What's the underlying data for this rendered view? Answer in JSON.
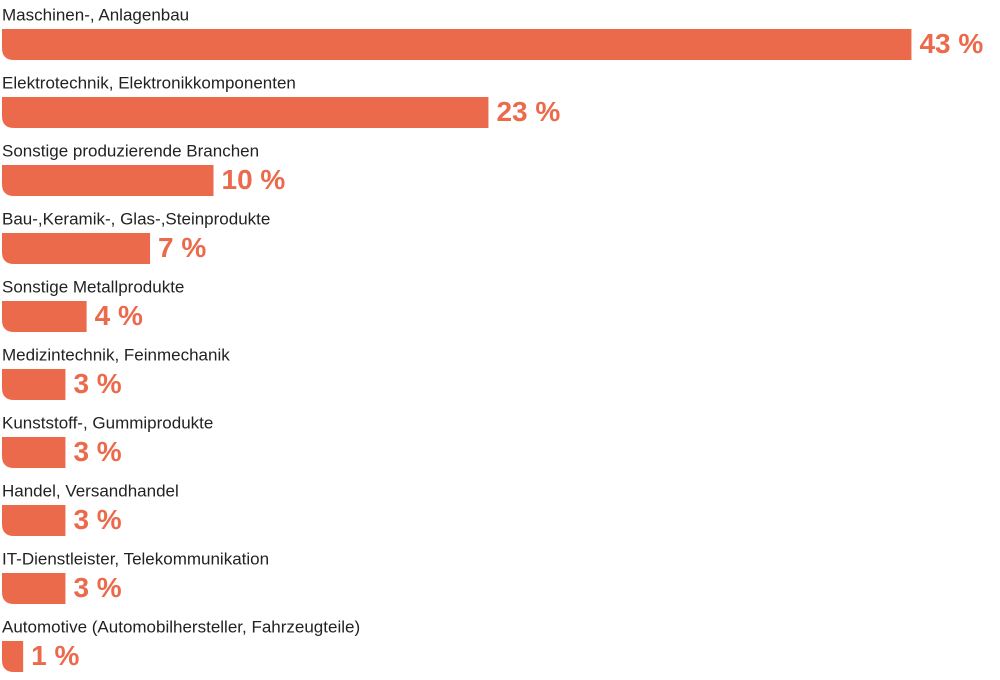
{
  "chart_data": {
    "type": "bar",
    "orientation": "horizontal",
    "color": "#ec6a4c",
    "categories": [
      "Maschinen-, Anlagenbau",
      "Elektrotechnik, Elektronikkomponenten",
      "Sonstige produzierende Branchen",
      "Bau-,Keramik-, Glas-,Steinprodukte",
      "Sonstige Metallprodukte",
      "Medizintechnik, Feinmechanik",
      "Kunststoff-, Gummiprodukte",
      "Handel, Versandhandel",
      "IT-Dienstleister, Telekommunikation",
      "Automotive (Automobilhersteller, Fahrzeugteile)"
    ],
    "values": [
      43,
      23,
      10,
      7,
      4,
      3,
      3,
      3,
      3,
      1
    ],
    "value_labels": [
      "43 %",
      "23 %",
      "10 %",
      "7 %",
      "4 %",
      "3 %",
      "3 %",
      "3 %",
      "3 %",
      "1 %"
    ]
  }
}
